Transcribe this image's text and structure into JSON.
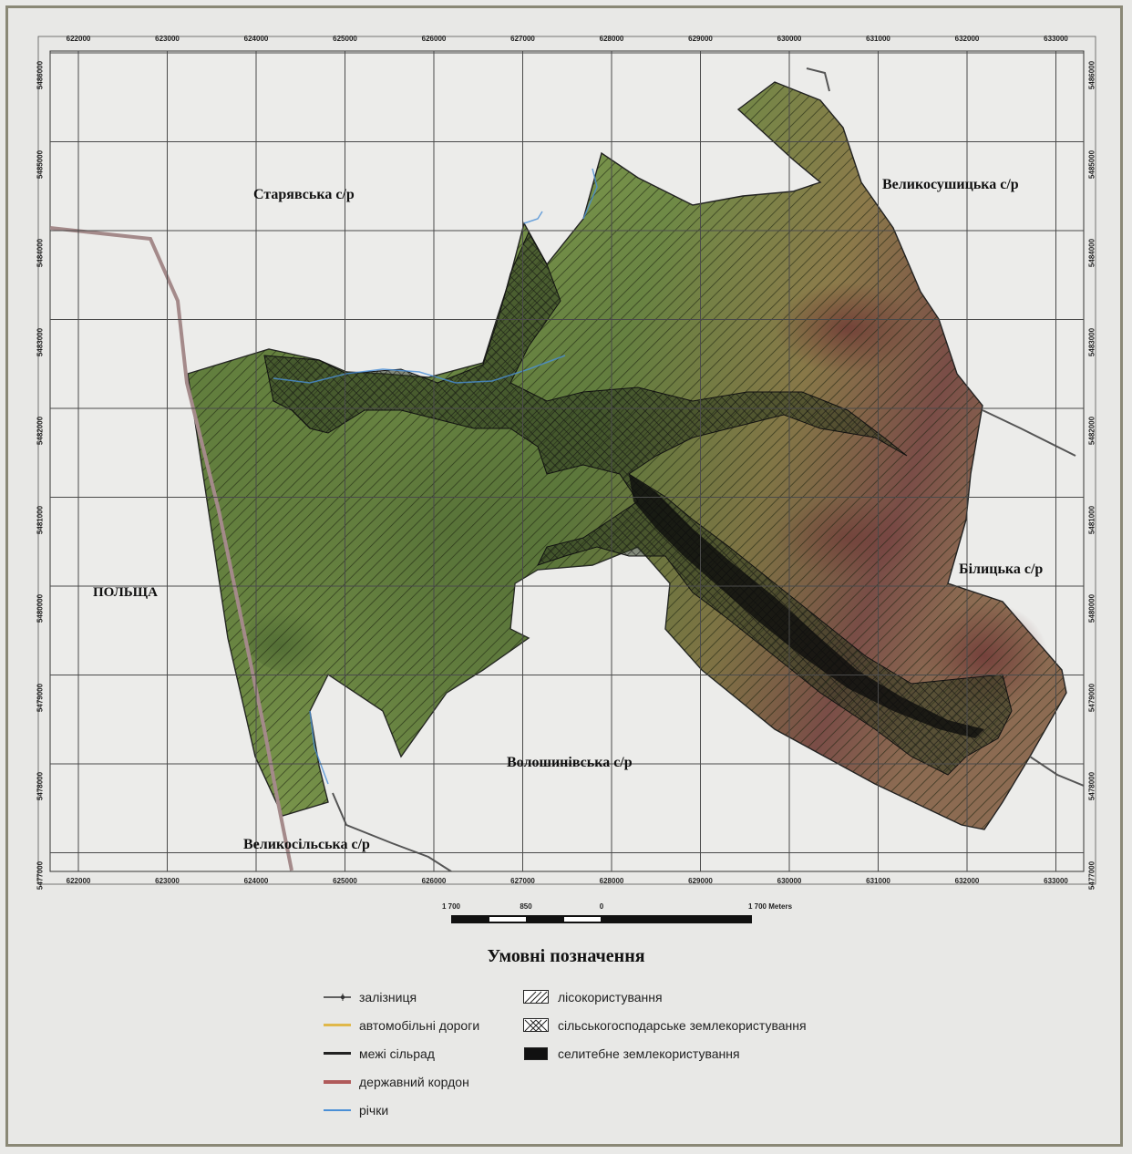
{
  "grid": {
    "x_ticks": [
      "622000",
      "623000",
      "624000",
      "625000",
      "626000",
      "627000",
      "628000",
      "629000",
      "630000",
      "631000",
      "632000",
      "633000"
    ],
    "y_ticks": [
      "5486000",
      "5485000",
      "5484000",
      "5483000",
      "5482000",
      "5481000",
      "5480000",
      "5479000",
      "5478000",
      "5477000"
    ]
  },
  "regions": {
    "staryavska": "Старявська с/р",
    "velykosushytska": "Великосушицька с/р",
    "bilytska": "Білицька с/р",
    "voloshynivska": "Волошинівська с/р",
    "velykosilska": "Великосільська с/р",
    "poland": "ПОЛЬЩА"
  },
  "scale_bar": {
    "labels": [
      "1 700",
      "850",
      "0",
      "1 700 Meters"
    ]
  },
  "legend": {
    "title": "Умовні позначення",
    "left_items": [
      {
        "label": "залізниця",
        "symbol": "railway",
        "color": "#333333"
      },
      {
        "label": "автомобільні дороги",
        "symbol": "line",
        "color": "#e0b84a"
      },
      {
        "label": "межі сільрад",
        "symbol": "line",
        "color": "#222222"
      },
      {
        "label": "державний кордон",
        "symbol": "line",
        "color": "#b05a5a"
      },
      {
        "label": "річки",
        "symbol": "line",
        "color": "#4a8fd6"
      }
    ],
    "right_items": [
      {
        "label": "лісокористування",
        "symbol": "hatch"
      },
      {
        "label": "сільськогосподарське землекористування",
        "symbol": "crosshatch"
      },
      {
        "label": "селитебне землекористування",
        "symbol": "solid"
      }
    ]
  },
  "colors": {
    "terrain_low": "#5f7a3c",
    "terrain_high": "#7a4a45",
    "border": "#a88c8c",
    "river": "#4a8fd6",
    "grid": "#4a4a4a"
  }
}
